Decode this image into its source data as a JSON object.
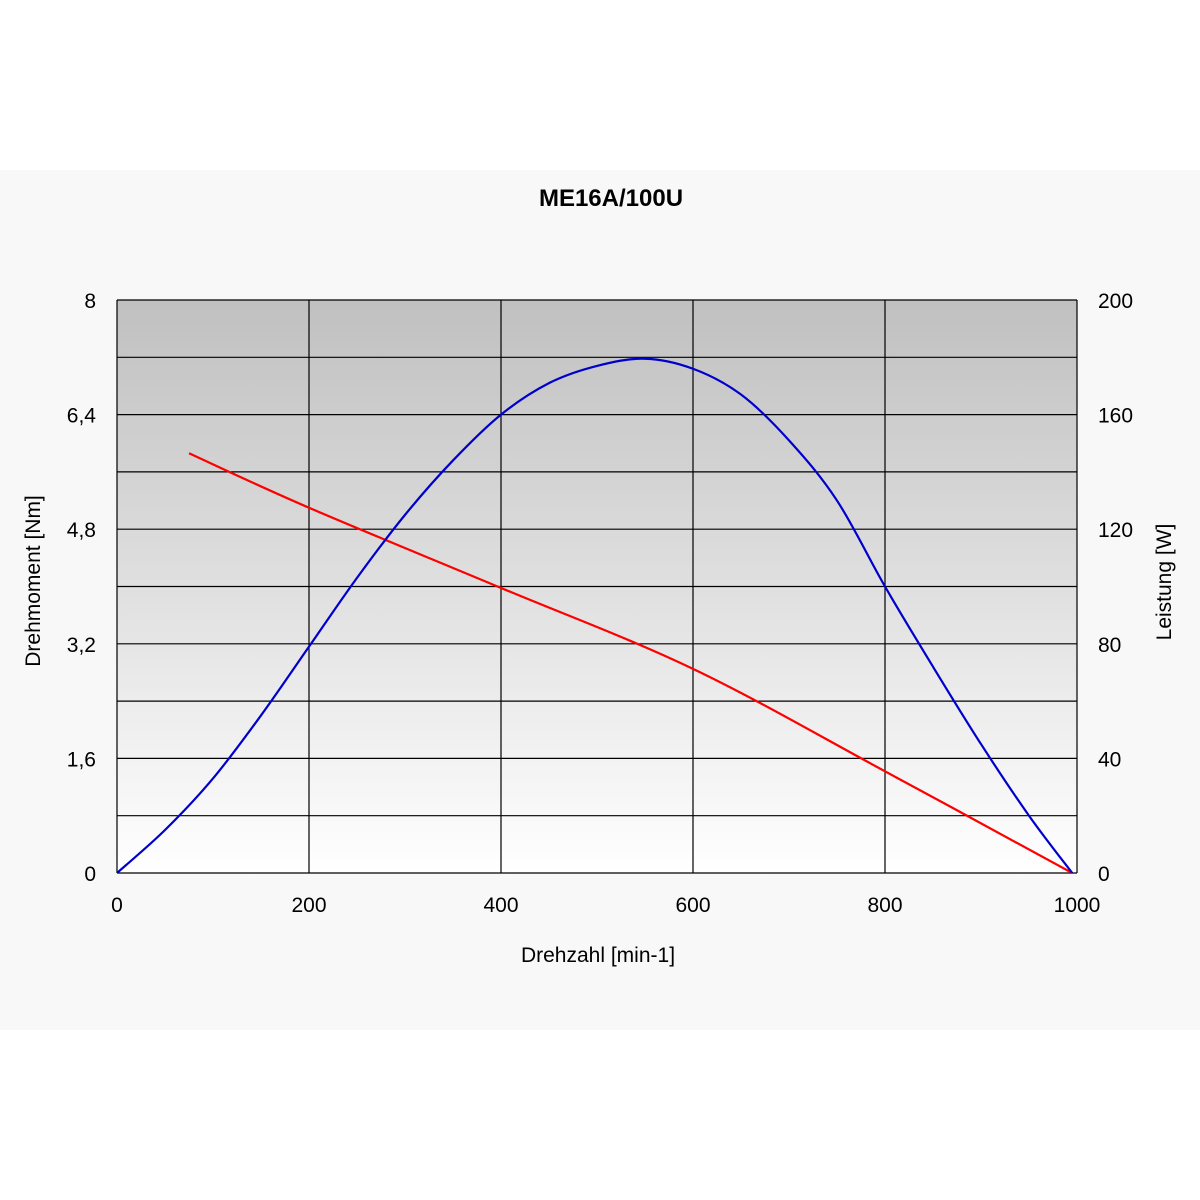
{
  "chart_data": {
    "type": "line",
    "title": "ME16A/100U",
    "xlabel": "Drehzahl [min-1]",
    "ylabel_left": "Drehmoment [Nm]",
    "ylabel_right": "Leistung [W]",
    "xlim": [
      0,
      1000
    ],
    "ylim_left": [
      0,
      8
    ],
    "ylim_right": [
      0,
      200
    ],
    "x_ticks": [
      "0",
      "200",
      "400",
      "600",
      "800",
      "1000"
    ],
    "y_left_ticks": [
      "0",
      "1,6",
      "3,2",
      "4,8",
      "6,4",
      "8"
    ],
    "y_right_ticks": [
      "0",
      "40",
      "80",
      "120",
      "160",
      "200"
    ],
    "grid": true,
    "colors": {
      "torque": "#ff0000",
      "power": "#0000cc",
      "plot_top": "#c0c0c0",
      "plot_bottom": "#ffffff",
      "page_bg": "#f8f8f8"
    },
    "series": [
      {
        "axis": "left",
        "color": "#ff0000",
        "x": [
          75,
          200,
          400,
          600,
          800,
          995
        ],
        "values": [
          5.86,
          5.1,
          3.98,
          2.85,
          1.42,
          0
        ]
      },
      {
        "axis": "right",
        "color": "#0000cc",
        "x": [
          0,
          50,
          100,
          150,
          200,
          250,
          300,
          350,
          400,
          450,
          500,
          550,
          600,
          650,
          700,
          750,
          800,
          850,
          900,
          950,
          995
        ],
        "values": [
          0,
          15,
          33,
          55,
          79,
          103,
          125,
          144,
          160,
          171,
          177,
          179.5,
          176,
          167,
          151,
          130,
          100,
          72,
          45,
          20,
          0
        ]
      }
    ]
  }
}
